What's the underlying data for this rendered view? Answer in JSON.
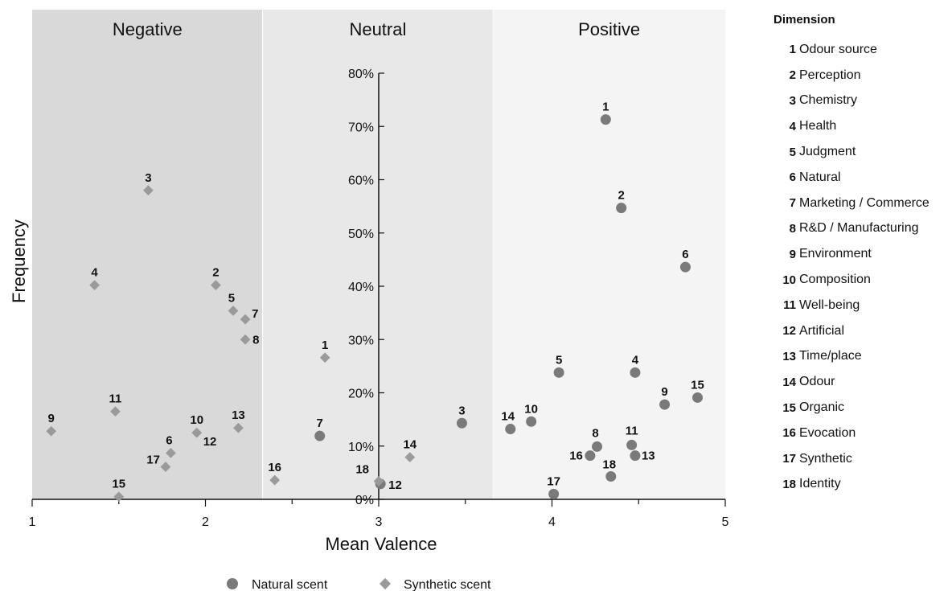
{
  "chart_data": {
    "type": "scatter",
    "xlabel": "Mean Valence",
    "ylabel": "Frequency",
    "xlim": [
      1,
      5
    ],
    "ylim": [
      0,
      80
    ],
    "x_ticks": [
      "1",
      "2",
      "3",
      "4",
      "5"
    ],
    "y_ticks": [
      "0%",
      "10%",
      "20%",
      "30%",
      "40%",
      "50%",
      "60%",
      "70%",
      "80%"
    ],
    "regions": [
      {
        "label": "Negative",
        "from": 1.0,
        "to": 2.33,
        "color": "#d9d9d9"
      },
      {
        "label": "Neutral",
        "from": 2.33,
        "to": 3.66,
        "color": "#e8e8e8"
      },
      {
        "label": "Positive",
        "from": 3.66,
        "to": 5.0,
        "color": "#f4f4f4"
      }
    ],
    "series": [
      {
        "name": "Natural scent",
        "marker": "circle",
        "color": "#7a7a7a",
        "points": [
          {
            "label": "1",
            "x": 4.31,
            "y": 71.3
          },
          {
            "label": "2",
            "x": 4.4,
            "y": 54.7
          },
          {
            "label": "3",
            "x": 3.48,
            "y": 14.3
          },
          {
            "label": "4",
            "x": 4.48,
            "y": 23.8
          },
          {
            "label": "5",
            "x": 4.04,
            "y": 23.8
          },
          {
            "label": "6",
            "x": 4.77,
            "y": 43.6
          },
          {
            "label": "7",
            "x": 2.66,
            "y": 11.9
          },
          {
            "label": "8",
            "x": 4.26,
            "y": 9.9
          },
          {
            "label": "9",
            "x": 4.65,
            "y": 17.8
          },
          {
            "label": "10",
            "x": 3.88,
            "y": 14.6
          },
          {
            "label": "11",
            "x": 4.46,
            "y": 10.2
          },
          {
            "label": "12",
            "x": 3.01,
            "y": 2.9
          },
          {
            "label": "13",
            "x": 4.48,
            "y": 8.2
          },
          {
            "label": "14",
            "x": 3.76,
            "y": 13.2
          },
          {
            "label": "15",
            "x": 4.84,
            "y": 19.1
          },
          {
            "label": "16",
            "x": 4.22,
            "y": 8.2
          },
          {
            "label": "17",
            "x": 4.01,
            "y": 1.0
          },
          {
            "label": "18",
            "x": 4.34,
            "y": 4.3
          }
        ]
      },
      {
        "name": "Synthetic scent",
        "marker": "diamond",
        "color": "#9a9a9a",
        "points": [
          {
            "label": "1",
            "x": 2.69,
            "y": 26.6
          },
          {
            "label": "2",
            "x": 2.06,
            "y": 40.2
          },
          {
            "label": "3",
            "x": 1.67,
            "y": 58.0
          },
          {
            "label": "4",
            "x": 1.36,
            "y": 40.2
          },
          {
            "label": "5",
            "x": 2.16,
            "y": 35.4
          },
          {
            "label": "6",
            "x": 1.8,
            "y": 8.7
          },
          {
            "label": "7",
            "x": 2.23,
            "y": 33.8
          },
          {
            "label": "8",
            "x": 2.23,
            "y": 30.0
          },
          {
            "label": "9",
            "x": 1.11,
            "y": 12.8
          },
          {
            "label": "10",
            "x": 1.95,
            "y": 12.5
          },
          {
            "label": "11",
            "x": 1.48,
            "y": 16.5
          },
          {
            "label": "12",
            "x": 1.95,
            "y": 12.5
          },
          {
            "label": "13",
            "x": 2.19,
            "y": 13.4
          },
          {
            "label": "14",
            "x": 3.18,
            "y": 7.9
          },
          {
            "label": "15",
            "x": 1.5,
            "y": 0.5
          },
          {
            "label": "16",
            "x": 2.4,
            "y": 3.6
          },
          {
            "label": "17",
            "x": 1.77,
            "y": 6.1
          },
          {
            "label": "18",
            "x": 3.0,
            "y": 3.4
          }
        ]
      }
    ]
  },
  "legend": {
    "natural_label": "Natural scent",
    "synthetic_label": "Synthetic scent"
  },
  "dimension_legend": {
    "title": "Dimension",
    "items": [
      {
        "num": "1",
        "label": "Odour source"
      },
      {
        "num": "2",
        "label": "Perception"
      },
      {
        "num": "3",
        "label": "Chemistry"
      },
      {
        "num": "4",
        "label": "Health"
      },
      {
        "num": "5",
        "label": "Judgment"
      },
      {
        "num": "6",
        "label": "Natural"
      },
      {
        "num": "7",
        "label": "Marketing / Commerce"
      },
      {
        "num": "8",
        "label": "R&D / Manufacturing"
      },
      {
        "num": "9",
        "label": "Environment"
      },
      {
        "num": "10",
        "label": "Composition"
      },
      {
        "num": "11",
        "label": "Well-being"
      },
      {
        "num": "12",
        "label": "Artificial"
      },
      {
        "num": "13",
        "label": "Time/place"
      },
      {
        "num": "14",
        "label": "Odour"
      },
      {
        "num": "15",
        "label": "Organic"
      },
      {
        "num": "16",
        "label": "Evocation"
      },
      {
        "num": "17",
        "label": "Synthetic"
      },
      {
        "num": "18",
        "label": "Identity"
      }
    ]
  }
}
